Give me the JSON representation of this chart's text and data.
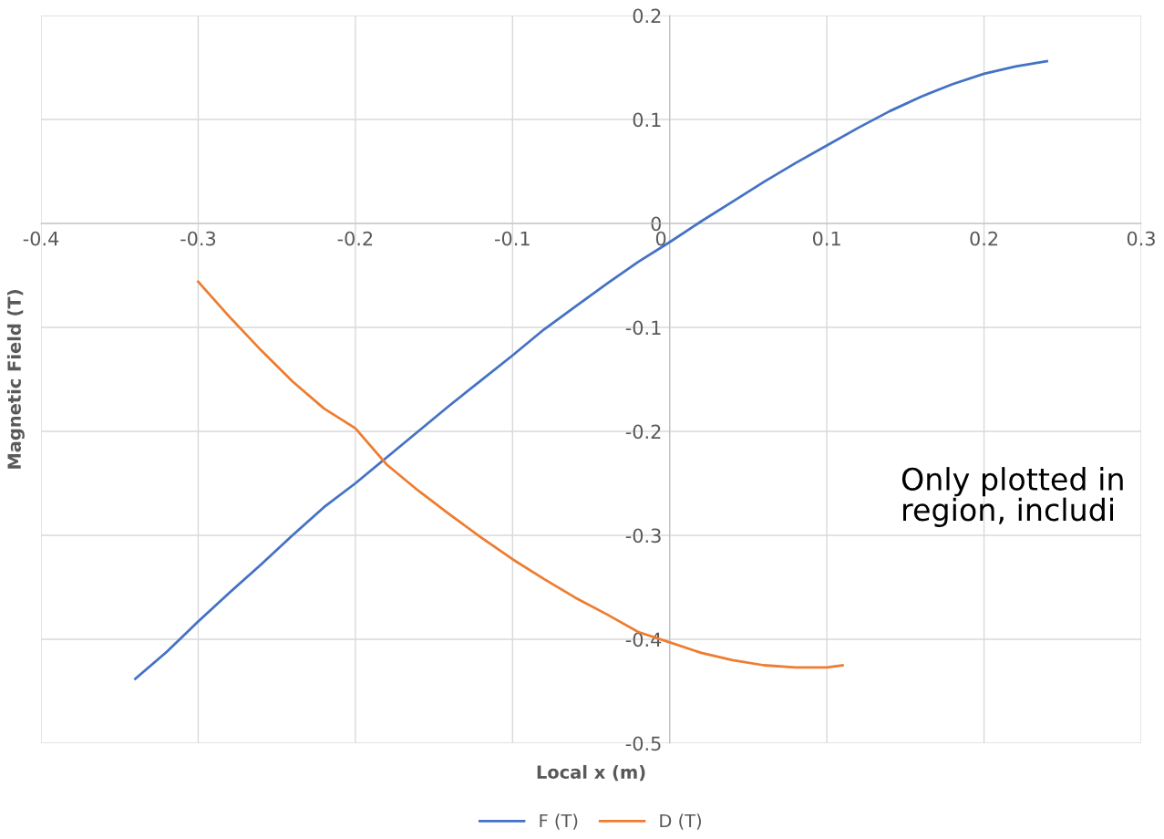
{
  "chart_data": {
    "type": "line",
    "xlabel": "Local x (m)",
    "ylabel": "Magnetic Field (T)",
    "xlim": [
      -0.4,
      0.3
    ],
    "xticks": [
      -0.4,
      -0.3,
      -0.2,
      -0.1,
      0,
      0.1,
      0.2,
      0.3
    ],
    "ylim": [
      -0.5,
      0.2
    ],
    "yticks": [
      -0.5,
      -0.4,
      -0.3,
      -0.2,
      -0.1,
      0,
      0.1,
      0.2
    ],
    "grid": true,
    "legend": "bottom",
    "marker": "none",
    "line_style": "solid",
    "annotations": [
      "Only plotted in\nregion, includi"
    ],
    "series": [
      {
        "name": "F (T)",
        "color": "#4472c4",
        "x": [
          -0.34,
          -0.32,
          -0.3,
          -0.28,
          -0.26,
          -0.24,
          -0.22,
          -0.2,
          -0.18,
          -0.16,
          -0.14,
          -0.12,
          -0.1,
          -0.08,
          -0.06,
          -0.04,
          -0.02,
          0,
          0.02,
          0.04,
          0.06,
          0.08,
          0.1,
          0.12,
          0.14,
          0.16,
          0.18,
          0.2,
          0.22,
          0.24
        ],
        "values": [
          -0.438,
          -0.412,
          -0.383,
          -0.355,
          -0.328,
          -0.3,
          -0.273,
          -0.25,
          -0.225,
          -0.2,
          -0.175,
          -0.151,
          -0.127,
          -0.102,
          -0.08,
          -0.058,
          -0.037,
          -0.018,
          0.002,
          0.021,
          0.04,
          0.058,
          0.075,
          0.092,
          0.108,
          0.122,
          0.134,
          0.144,
          0.151,
          0.156
        ]
      },
      {
        "name": "D (T)",
        "color": "#ed7d31",
        "x": [
          -0.3,
          -0.28,
          -0.26,
          -0.24,
          -0.22,
          -0.2,
          -0.18,
          -0.16,
          -0.14,
          -0.12,
          -0.1,
          -0.08,
          -0.06,
          -0.04,
          -0.02,
          0,
          0.02,
          0.04,
          0.06,
          0.08,
          0.1,
          0.11
        ],
        "values": [
          -0.056,
          -0.09,
          -0.122,
          -0.152,
          -0.178,
          -0.197,
          -0.232,
          -0.257,
          -0.28,
          -0.302,
          -0.323,
          -0.342,
          -0.36,
          -0.376,
          -0.393,
          -0.403,
          -0.413,
          -0.42,
          -0.425,
          -0.427,
          -0.427,
          -0.425
        ]
      }
    ]
  }
}
